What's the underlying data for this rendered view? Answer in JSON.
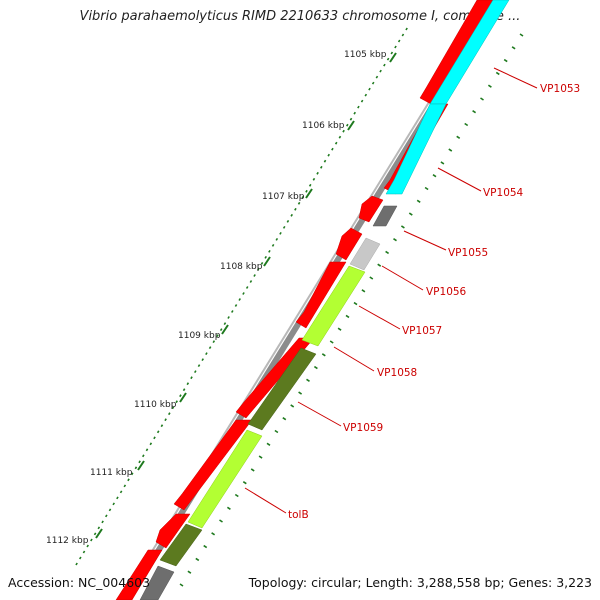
{
  "title": "Vibrio parahaemolyticus RIMD 2210633 chromosome I, complete ...",
  "footer": {
    "accession": "Accession: NC_004603",
    "stats": "Topology: circular; Length: 3,288,558 bp; Genes: 3,223"
  },
  "colors": {
    "backbone": "#9a9a9a",
    "forward_gene": "#ff0000",
    "tick": "#1f7a1f",
    "label": "#cc0000",
    "cyan": "#00ffff",
    "gray_dark": "#6e6e6e",
    "gray_light": "#c8c8c8",
    "lime": "#b3ff33",
    "olive": "#5c7a1f",
    "olive_dark": "#4a6a1a"
  },
  "scale_labels": [
    "1105 kbp",
    "1106 kbp",
    "1107 kbp",
    "1108 kbp",
    "1109 kbp",
    "1110 kbp",
    "1111 kbp",
    "1112 kbp"
  ],
  "gene_labels": [
    "VP1053",
    "VP1054",
    "VP1055",
    "VP1056",
    "VP1057",
    "VP1058",
    "VP1059",
    "tolB"
  ]
}
